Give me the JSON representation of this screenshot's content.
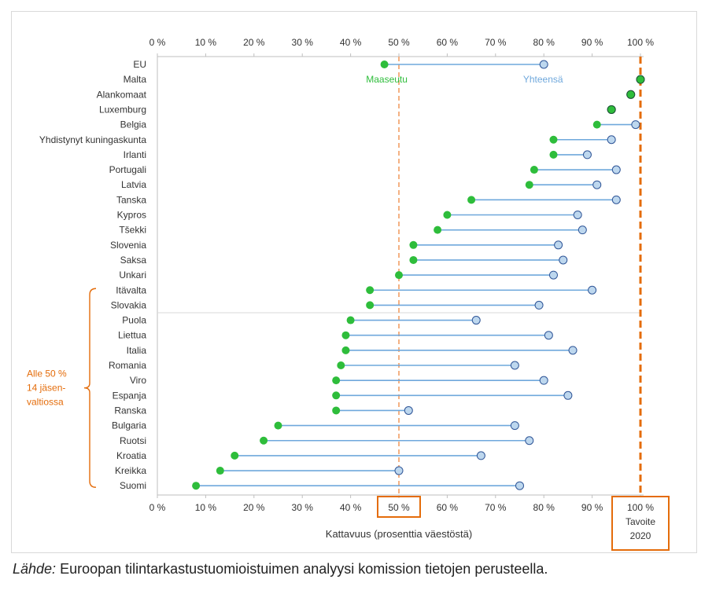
{
  "chart_data": {
    "type": "dumbbell",
    "xlabel": "Kattavuus (prosenttia väestöstä)",
    "xlim": [
      0,
      100
    ],
    "ticks": [
      "0 %",
      "10 %",
      "20 %",
      "30 %",
      "40 %",
      "50 %",
      "60 %",
      "70 %",
      "80 %",
      "90 %",
      "100 %"
    ],
    "categories": [
      "EU",
      "Malta",
      "Alankomaat",
      "Luxemburg",
      "Belgia",
      "Yhdistynyt kuningaskunta",
      "Irlanti",
      "Portugali",
      "Latvia",
      "Tanska",
      "Kypros",
      "Tšekki",
      "Slovenia",
      "Saksa",
      "Unkari",
      "Itävalta",
      "Slovakia",
      "Puola",
      "Liettua",
      "Italia",
      "Romania",
      "Viro",
      "Espanja",
      "Ranska",
      "Bulgaria",
      "Ruotsi",
      "Kroatia",
      "Kreikka",
      "Suomi"
    ],
    "series": [
      {
        "name": "Maaseutu",
        "color": "#2ebd3b",
        "values": [
          47,
          100,
          98,
          94,
          91,
          82,
          82,
          78,
          77,
          65,
          60,
          58,
          53,
          53,
          50,
          44,
          44,
          40,
          39,
          39,
          38,
          37,
          37,
          37,
          25,
          22,
          16,
          13,
          8
        ]
      },
      {
        "name": "Yhteensä",
        "color": "#6fa8dc",
        "values": [
          80,
          100,
          98,
          94,
          99,
          94,
          89,
          95,
          91,
          95,
          87,
          88,
          83,
          84,
          82,
          90,
          79,
          66,
          81,
          86,
          74,
          80,
          85,
          52,
          74,
          77,
          67,
          50,
          75
        ]
      }
    ],
    "reference_lines": [
      {
        "value": 50,
        "label": "50 %",
        "color": "#f4b183",
        "style": "dashed"
      },
      {
        "value": 100,
        "label": "100 %",
        "sublabel": "Tavoite 2020",
        "color": "#e46c0a",
        "style": "dashed"
      }
    ],
    "annotations": {
      "rural_label": "Maaseutu",
      "total_label": "Yhteensä",
      "bracket_lines": [
        "Alle 50 %",
        "14 jäsen-",
        "valtiossa"
      ],
      "bracket_color": "#e46c0a"
    }
  },
  "source": {
    "prefix": "Lähde:",
    "text": " Euroopan tilintarkastustuomioistuimen analyysi komission tietojen perusteella."
  }
}
